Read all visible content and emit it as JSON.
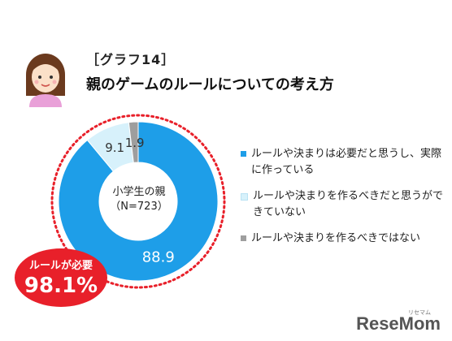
{
  "header": {
    "tag": "［グラフ14］",
    "title": "親のゲームのルールについての考え方"
  },
  "chart_data": {
    "type": "pie",
    "center_label": [
      "小学生の親",
      "（N=723）"
    ],
    "series": [
      {
        "name": "ルールや決まりは必要だと思うし、実際に作っている",
        "value": 88.9,
        "color": "#1e9ee8"
      },
      {
        "name": "ルールや決まりを作るべきだと思うができていない",
        "value": 9.1,
        "color": "#d7f1fb"
      },
      {
        "name": "ルールや決まりを作るべきではない",
        "value": 1.9,
        "color": "#9e9e9e"
      }
    ],
    "data_labels": [
      "88.9",
      "9.1",
      "1.9"
    ],
    "callout": {
      "label": "ルールが必要",
      "value": "98.1%",
      "color": "#e8202a"
    }
  },
  "brand": {
    "name": "ReseMom",
    "sub": "リセマム"
  }
}
